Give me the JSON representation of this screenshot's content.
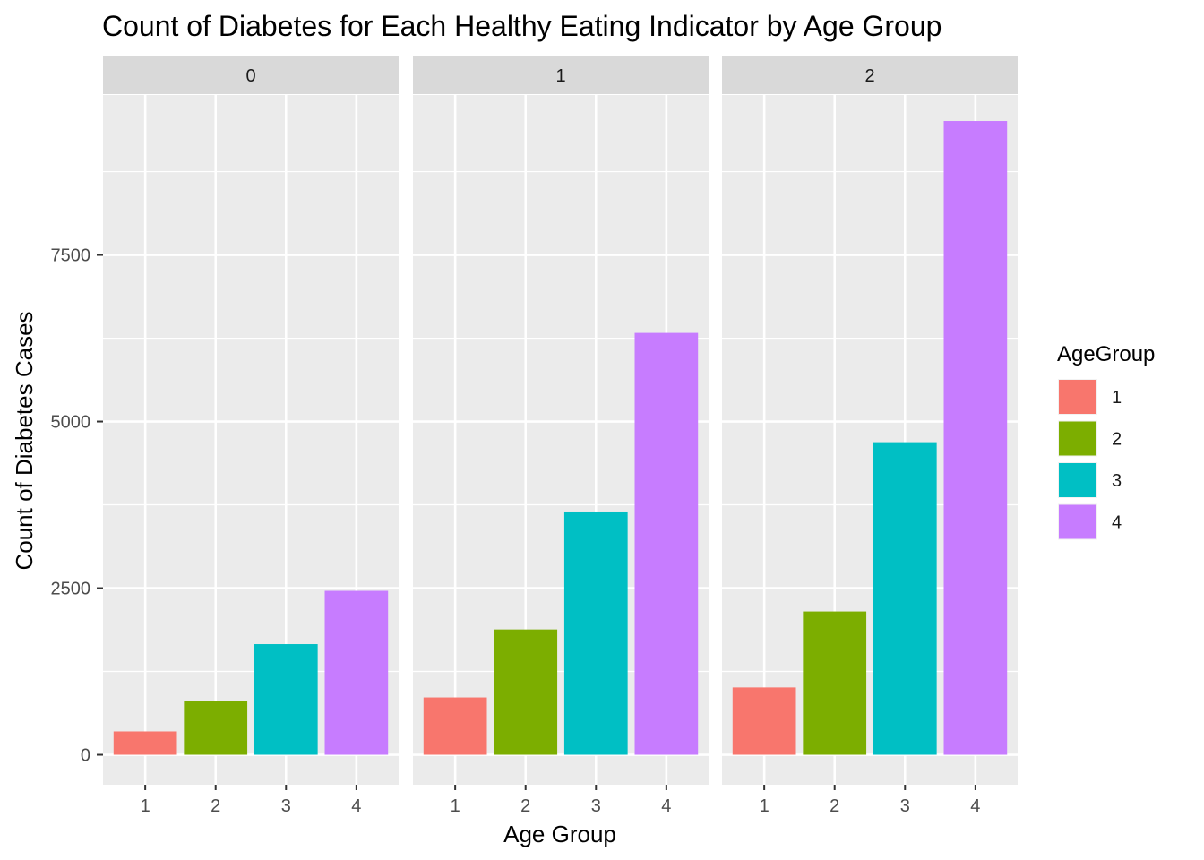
{
  "chart_data": {
    "type": "bar",
    "title": "Count of Diabetes for Each Healthy Eating Indicator by Age Group",
    "xlabel": "Age Group",
    "ylabel": "Count of Diabetes Cases",
    "ylim": [
      -450,
      9900
    ],
    "y_ticks": [
      0,
      2500,
      5000,
      7500
    ],
    "y_tick_labels": [
      "0",
      "2500",
      "5000",
      "7500"
    ],
    "y_minor_ticks": [
      1250,
      3750,
      6250,
      8750
    ],
    "categories": [
      "1",
      "2",
      "3",
      "4"
    ],
    "facets": [
      {
        "label": "0",
        "values": [
          350,
          810,
          1660,
          2460
        ]
      },
      {
        "label": "1",
        "values": [
          860,
          1880,
          3650,
          6330
        ]
      },
      {
        "label": "2",
        "values": [
          1010,
          2150,
          4690,
          9510
        ]
      }
    ],
    "legend": {
      "title": "AgeGroup",
      "position": "right",
      "entries": [
        {
          "label": "1",
          "color": "#F8766D"
        },
        {
          "label": "2",
          "color": "#7CAE00"
        },
        {
          "label": "3",
          "color": "#00BFC4"
        },
        {
          "label": "4",
          "color": "#C77CFF"
        }
      ]
    },
    "colors": {
      "panel_background": "#EBEBEB",
      "strip_background": "#D9D9D9",
      "grid": "#FFFFFF",
      "text": "#4D4D4D"
    }
  }
}
